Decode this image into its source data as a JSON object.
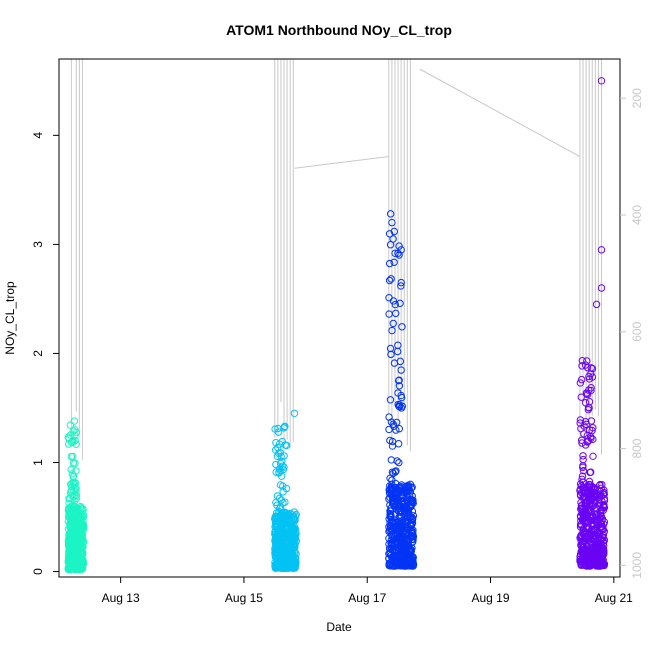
{
  "chart_data": {
    "type": "scatter",
    "title": "ATOM1 Northbound NOy_CL_trop",
    "xlabel": "Date",
    "ylabel": "NOy_CL_trop",
    "x_ticks": [
      "Aug 13",
      "Aug 15",
      "Aug 17",
      "Aug 19",
      "Aug 21"
    ],
    "x_tick_values": [
      13,
      15,
      17,
      19,
      21
    ],
    "xlim": [
      12.0,
      21.1
    ],
    "y_ticks": [
      0,
      1,
      2,
      3,
      4
    ],
    "ylim": [
      -0.05,
      4.7
    ],
    "right_axis": {
      "label": "",
      "ticks": [
        200,
        400,
        600,
        800,
        1000
      ],
      "range_top_to_bottom": [
        150,
        1020
      ],
      "color": "#c8c8c8",
      "description": "pressure (reversed)"
    },
    "grid": false,
    "legend": "none",
    "point_style": "open-circle",
    "series": [
      {
        "color": "#1cf4c4",
        "x_range": [
          12.15,
          12.4
        ],
        "y_dense_range": [
          0.02,
          0.6
        ],
        "y_max": 1.38,
        "y_spread_range": [
          0.1,
          1.35
        ],
        "pressure_profile_x": [
          12.2,
          12.28,
          12.33,
          12.38
        ],
        "pressure_min": 150
      },
      {
        "color": "#04c2f4",
        "x_range": [
          15.5,
          15.85
        ],
        "y_dense_range": [
          0.03,
          0.55
        ],
        "y_max": 1.45,
        "y_spread_range": [
          0.1,
          1.35
        ],
        "pressure_profile_x": [
          15.5,
          15.55,
          15.6,
          15.65,
          15.7,
          15.75,
          15.8
        ],
        "pressure_min": 150
      },
      {
        "color": "#0434f4",
        "x_range": [
          17.35,
          17.75
        ],
        "y_dense_range": [
          0.05,
          0.8
        ],
        "y_max": 3.28,
        "y_spread_range": [
          0.4,
          3.2
        ],
        "pressure_profile_x": [
          17.35,
          17.4,
          17.45,
          17.5,
          17.55,
          17.6,
          17.65,
          17.7
        ],
        "pressure_min": 150
      },
      {
        "color": "#6a04f4",
        "x_range": [
          20.45,
          20.85
        ],
        "y_dense_range": [
          0.05,
          0.8
        ],
        "y_max": 4.5,
        "y_spread_range": [
          0.5,
          1.95
        ],
        "pressure_profile_x": [
          20.45,
          20.5,
          20.55,
          20.6,
          20.65,
          20.7,
          20.75,
          20.8
        ],
        "pressure_min": 150
      }
    ],
    "outliers": [
      {
        "x": 20.8,
        "y": 4.5,
        "series": 3
      },
      {
        "x": 20.8,
        "y": 2.95,
        "series": 3
      },
      {
        "x": 20.8,
        "y": 2.6,
        "series": 3
      },
      {
        "x": 20.72,
        "y": 2.45,
        "series": 3
      },
      {
        "x": 17.38,
        "y": 3.28,
        "series": 2
      },
      {
        "x": 17.4,
        "y": 3.2,
        "series": 2
      },
      {
        "x": 17.42,
        "y": 3.05,
        "series": 2
      },
      {
        "x": 17.55,
        "y": 2.95,
        "series": 2
      },
      {
        "x": 15.82,
        "y": 1.45,
        "series": 1
      },
      {
        "x": 12.25,
        "y": 1.38,
        "series": 0
      }
    ],
    "connector_lines": [
      {
        "x": [
          15.82,
          17.35
        ],
        "pressure": [
          320,
          300
        ]
      },
      {
        "x": [
          17.85,
          20.45
        ],
        "pressure": [
          150,
          300
        ]
      }
    ]
  }
}
